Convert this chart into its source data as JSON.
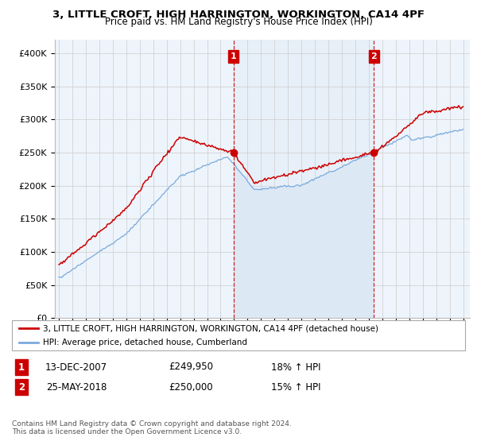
{
  "title1": "3, LITTLE CROFT, HIGH HARRINGTON, WORKINGTON, CA14 4PF",
  "title2": "Price paid vs. HM Land Registry's House Price Index (HPI)",
  "xlim_start": 1994.7,
  "xlim_end": 2025.5,
  "ylim": [
    0,
    420000
  ],
  "yticks": [
    0,
    50000,
    100000,
    150000,
    200000,
    250000,
    300000,
    350000,
    400000
  ],
  "ytick_labels": [
    "£0",
    "£50K",
    "£100K",
    "£150K",
    "£200K",
    "£250K",
    "£300K",
    "£350K",
    "£400K"
  ],
  "sale1_x": 2007.96,
  "sale1_y": 249950,
  "sale2_x": 2018.38,
  "sale2_y": 250000,
  "sale1_label": "1",
  "sale2_label": "2",
  "sale1_date": "13-DEC-2007",
  "sale1_price": "£249,950",
  "sale1_hpi": "18% ↑ HPI",
  "sale2_date": "25-MAY-2018",
  "sale2_price": "£250,000",
  "sale2_hpi": "15% ↑ HPI",
  "line_red": "#cc0000",
  "line_blue": "#7aaadd",
  "fill_blue": "#dce9f5",
  "plot_bg": "#eef4fb",
  "bg_color": "#ffffff",
  "grid_color": "#cccccc",
  "annotation_box_color": "#cc0000",
  "legend_label_red": "3, LITTLE CROFT, HIGH HARRINGTON, WORKINGTON, CA14 4PF (detached house)",
  "legend_label_blue": "HPI: Average price, detached house, Cumberland",
  "footer1": "Contains HM Land Registry data © Crown copyright and database right 2024.",
  "footer2": "This data is licensed under the Open Government Licence v3.0."
}
